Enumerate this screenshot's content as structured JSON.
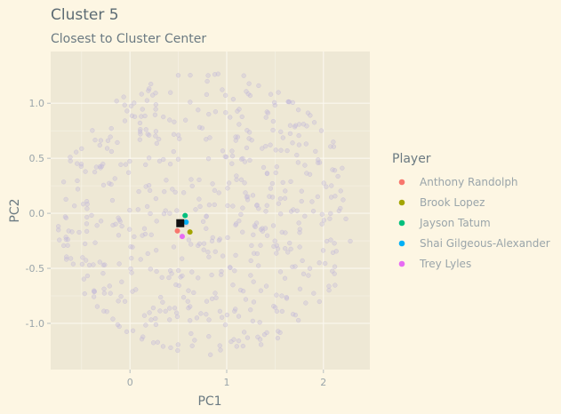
{
  "chart_data": {
    "type": "scatter",
    "title": "Cluster 5",
    "subtitle": "Closest to Cluster Center",
    "xlabel": "PC1",
    "ylabel": "PC2",
    "xlim": [
      -0.82,
      2.48
    ],
    "ylim": [
      -1.42,
      1.47
    ],
    "x_ticks": [
      0,
      1,
      2
    ],
    "y_ticks": [
      1.0,
      0.5,
      0.0,
      -0.5,
      -1.0
    ],
    "x_tick_labels": [
      "0",
      "1",
      "2"
    ],
    "y_tick_labels": [
      "1.0",
      "0.5",
      "0.0",
      "-0.5",
      "-1.0"
    ],
    "grid": true,
    "legend_title": "Player",
    "legend_position": "right",
    "panel_color": "#eee8d5",
    "background_color": "#fdf6e3",
    "background_points_color": "#c4b9d9",
    "center": {
      "x": 0.52,
      "y": -0.09,
      "color": "#111111"
    },
    "series": [
      {
        "name": "Anthony Randolph",
        "color": "#f8766d",
        "x": 0.49,
        "y": -0.16
      },
      {
        "name": "Brook Lopez",
        "color": "#a3a500",
        "x": 0.62,
        "y": -0.17
      },
      {
        "name": "Jayson Tatum",
        "color": "#00bf7d",
        "x": 0.57,
        "y": -0.02
      },
      {
        "name": "Shai Gilgeous-Alexander",
        "color": "#00b0f6",
        "x": 0.58,
        "y": -0.08
      },
      {
        "name": "Trey Lyles",
        "color": "#e76bf3",
        "x": 0.54,
        "y": -0.21
      }
    ]
  }
}
